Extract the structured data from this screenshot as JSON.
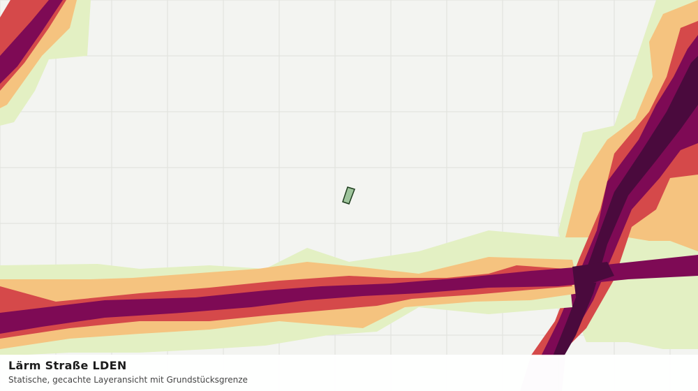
{
  "map": {
    "title": "Lärm Straße LDEN",
    "subtitle": "Statische, gecachte Layeransicht mit Grundstücksgrenze"
  },
  "colors": {
    "background": "#f3f4f1",
    "grid": "#dfe1dc",
    "band_lowest": "#e3f0c3",
    "band_low": "#f5c37f",
    "band_mid": "#d5494a",
    "band_high": "#7e0a55",
    "band_highest": "#4a0a3d",
    "parcel_fill": "#9ec49c",
    "parcel_stroke": "#1e3d1e"
  },
  "legend_levels": [
    "band_lowest",
    "band_low",
    "band_mid",
    "band_high",
    "band_highest"
  ]
}
